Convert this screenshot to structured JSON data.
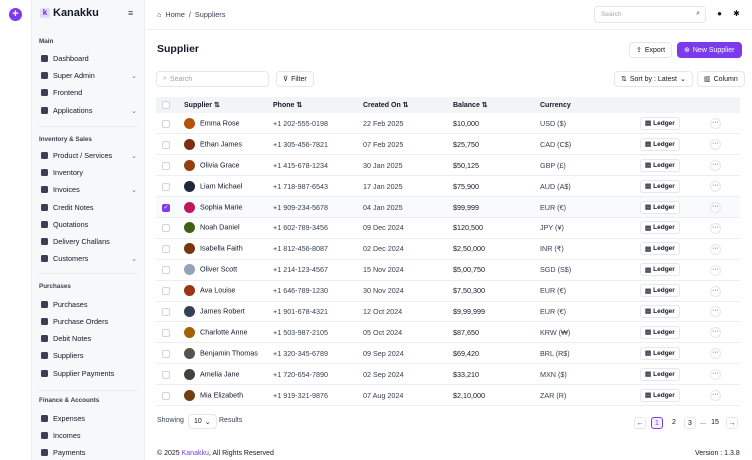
{
  "brand": "Kanakku",
  "sidebar": {
    "sections": [
      {
        "title": "Main",
        "items": [
          {
            "label": "Dashboard"
          },
          {
            "label": "Super Admin",
            "caret": true
          },
          {
            "label": "Frontend"
          },
          {
            "label": "Applications",
            "caret": true
          }
        ]
      },
      {
        "title": "Inventory & Sales",
        "items": [
          {
            "label": "Product / Services",
            "caret": true
          },
          {
            "label": "Inventory"
          },
          {
            "label": "Invoices",
            "caret": true
          },
          {
            "label": "Credit Notes"
          },
          {
            "label": "Quotations"
          },
          {
            "label": "Delivery Challans"
          },
          {
            "label": "Customers",
            "caret": true
          }
        ]
      },
      {
        "title": "Purchases",
        "items": [
          {
            "label": "Purchases"
          },
          {
            "label": "Purchase Orders"
          },
          {
            "label": "Debit Notes"
          },
          {
            "label": "Suppliers"
          },
          {
            "label": "Supplier Payments"
          }
        ]
      },
      {
        "title": "Finance & Accounts",
        "items": [
          {
            "label": "Expenses"
          },
          {
            "label": "Incomes"
          },
          {
            "label": "Payments"
          }
        ]
      }
    ]
  },
  "topbar": {
    "breadcrumb_home": "Home",
    "breadcrumb_sep": "/",
    "breadcrumb_current": "Suppliers",
    "search_placeholder": "Search"
  },
  "page": {
    "title": "Supplier",
    "export_label": "Export",
    "new_label": "New Supplier",
    "search_placeholder": "Search",
    "filter_label": "Filter",
    "sort_label": "Sort by : Latest",
    "column_label": "Column"
  },
  "table": {
    "headers": {
      "supplier": "Supplier",
      "phone": "Phone",
      "created": "Created On",
      "balance": "Balance",
      "currency": "Currency"
    },
    "ledger_label": "Ledger",
    "rows": [
      {
        "name": "Emma Rose",
        "phone": "+1 202-555-0198",
        "date": "22 Feb 2025",
        "balance": "$10,000",
        "currency": "USD ($)",
        "checked": false,
        "av": "#b45309"
      },
      {
        "name": "Ethan James",
        "phone": "+1 305-456-7821",
        "date": "07 Feb 2025",
        "balance": "$25,750",
        "currency": "CAD (C$)",
        "checked": false,
        "av": "#7c2d12"
      },
      {
        "name": "Olivia Grace",
        "phone": "+1 415-678-1234",
        "date": "30 Jan 2025",
        "balance": "$50,125",
        "currency": "GBP (£)",
        "checked": false,
        "av": "#92400e"
      },
      {
        "name": "Liam Michael",
        "phone": "+1 718-987-6543",
        "date": "17 Jan 2025",
        "balance": "$75,900",
        "currency": "AUD (A$)",
        "checked": false,
        "av": "#1f2937"
      },
      {
        "name": "Sophia Marie",
        "phone": "+1 909-234-5678",
        "date": "04 Jan 2025",
        "balance": "$99,999",
        "currency": "EUR (€)",
        "checked": true,
        "av": "#be185d"
      },
      {
        "name": "Noah Daniel",
        "phone": "+1 602-789-3456",
        "date": "09 Dec 2024",
        "balance": "$120,500",
        "currency": "JPY (¥)",
        "checked": false,
        "av": "#3f6212"
      },
      {
        "name": "Isabella Faith",
        "phone": "+1 812-456-8087",
        "date": "02 Dec 2024",
        "balance": "$2,50,000",
        "currency": "INR (₹)",
        "checked": false,
        "av": "#78350f"
      },
      {
        "name": "Oliver Scott",
        "phone": "+1 214-123-4567",
        "date": "15 Nov 2024",
        "balance": "$5,00,750",
        "currency": "SGD (S$)",
        "checked": false,
        "av": "#94a3b8"
      },
      {
        "name": "Ava Louise",
        "phone": "+1 646-789-1230",
        "date": "30 Nov 2024",
        "balance": "$7,50,300",
        "currency": "EUR (€)",
        "checked": false,
        "av": "#9a3412"
      },
      {
        "name": "James Robert",
        "phone": "+1 901-678-4321",
        "date": "12 Oct 2024",
        "balance": "$9,99,999",
        "currency": "EUR (€)",
        "checked": false,
        "av": "#334155"
      },
      {
        "name": "Charlotte Anne",
        "phone": "+1 503-987-2105",
        "date": "05 Oct 2024",
        "balance": "$87,650",
        "currency": "KRW (₩)",
        "checked": false,
        "av": "#a16207"
      },
      {
        "name": "Benjamin Thomas",
        "phone": "+1 320-345-6789",
        "date": "09 Sep 2024",
        "balance": "$69,420",
        "currency": "BRL (R$)",
        "checked": false,
        "av": "#57534e"
      },
      {
        "name": "Amelia Jane",
        "phone": "+1 720-654-7890",
        "date": "02 Sep 2024",
        "balance": "$33,210",
        "currency": "MXN ($)",
        "checked": false,
        "av": "#44403c"
      },
      {
        "name": "Mia Elizabeth",
        "phone": "+1 919-321-9876",
        "date": "07 Aug 2024",
        "balance": "$2,10,000",
        "currency": "ZAR (R)",
        "checked": false,
        "av": "#713f12"
      }
    ]
  },
  "footer": {
    "showing": "Showing",
    "per_page": "10",
    "results": "Results",
    "pages": [
      "1",
      "2",
      "3",
      "...",
      "15"
    ],
    "copyright_prefix": "© 2025 ",
    "copyright_brand": "Kanakku",
    "copyright_suffix": ", All Rights Reserved",
    "version": "Version : 1.3.8"
  },
  "colors": {
    "accent": "#7c3aed"
  }
}
